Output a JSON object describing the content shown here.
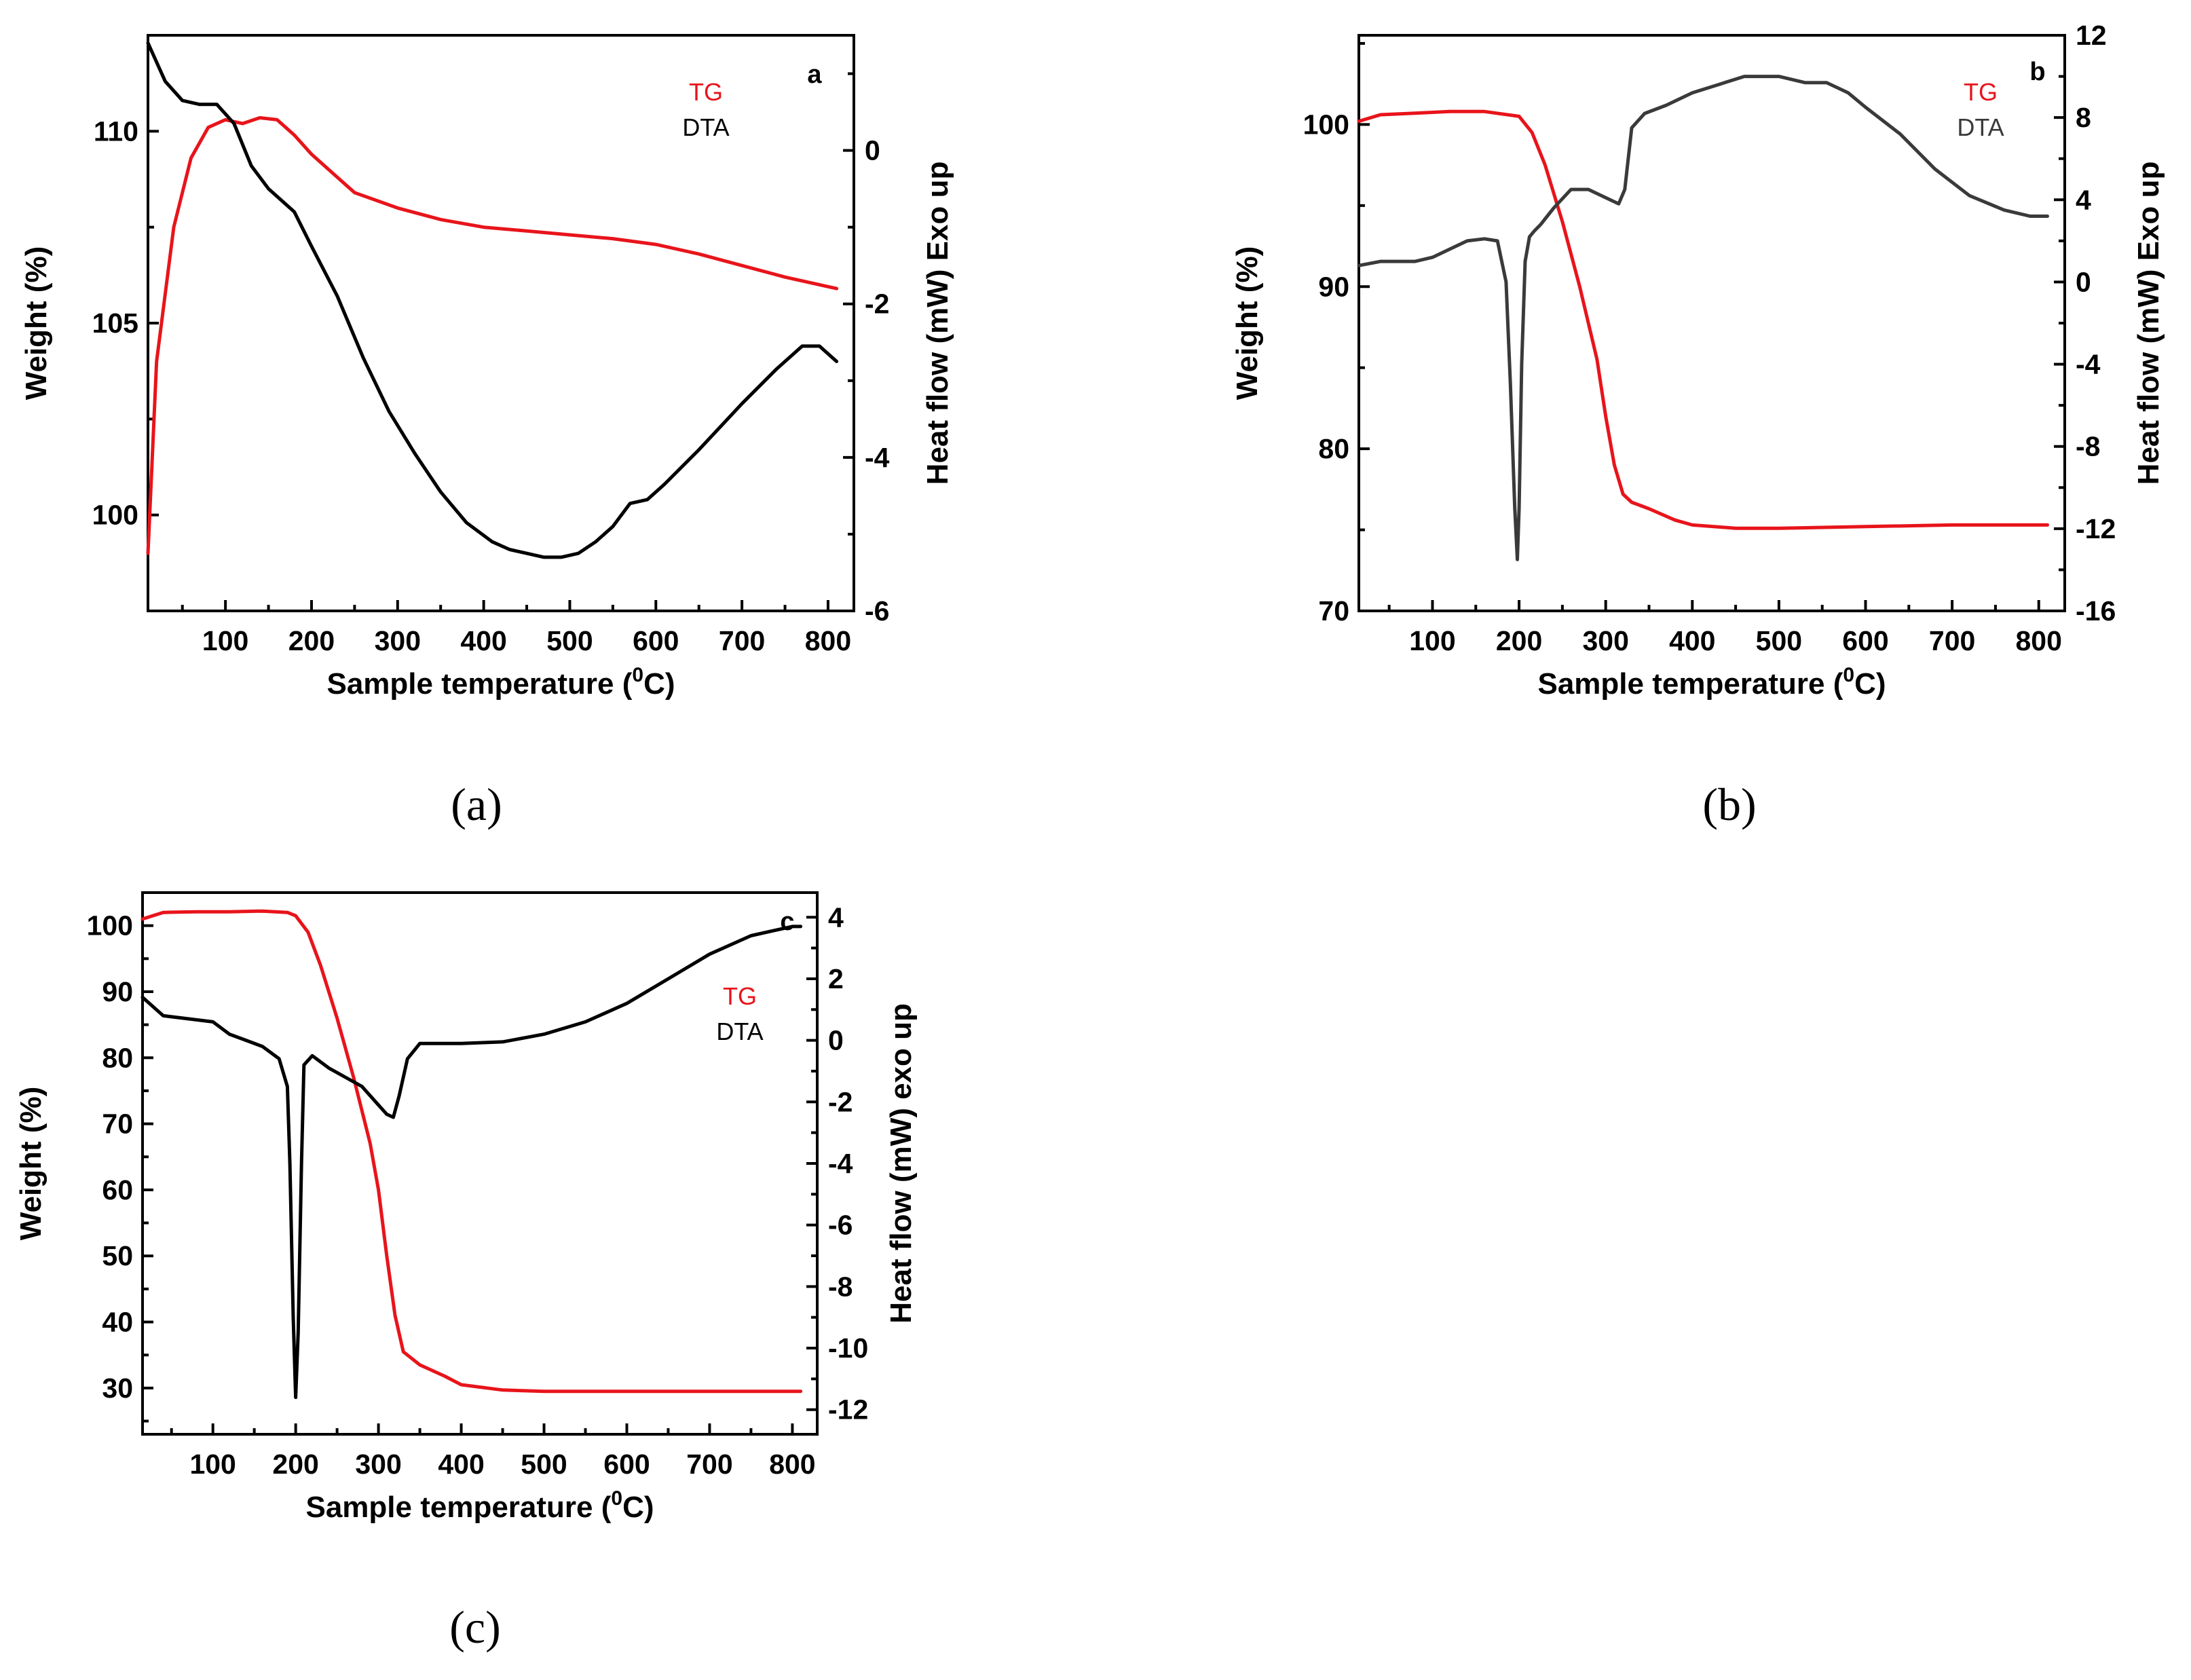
{
  "colors": {
    "tg": "#e8141b",
    "dta_a": "#000000",
    "dta_b": "#3a3a3a",
    "dta_c": "#000000",
    "axis": "#000000"
  },
  "chart_data": [
    {
      "type": "line",
      "panel_letter": "a",
      "caption": "(a)",
      "xlabel": "Sample temperature (",
      "xlabel_sup": "0",
      "xlabel_end": "C)",
      "ylabel_left": "Weight (%)",
      "ylabel_right": "Heat flow (mW) Exo up",
      "xlim": [
        10,
        830
      ],
      "ylim_left": [
        97.5,
        112.5
      ],
      "ylim_right": [
        -6,
        1.5
      ],
      "xticks": [
        100,
        200,
        300,
        400,
        500,
        600,
        700,
        800
      ],
      "yticks_left": [
        100,
        105,
        110
      ],
      "yticks_right": [
        -6,
        -4,
        -2,
        0
      ],
      "legend": [
        "TG",
        "DTA"
      ],
      "series": [
        {
          "name": "TG",
          "axis": "left",
          "color_key": "tg",
          "x": [
            10,
            20,
            40,
            60,
            80,
            100,
            120,
            140,
            160,
            180,
            200,
            250,
            300,
            350,
            400,
            450,
            500,
            550,
            600,
            650,
            700,
            750,
            800,
            810
          ],
          "y": [
            99.0,
            104.0,
            107.5,
            109.3,
            110.1,
            110.3,
            110.2,
            110.35,
            110.3,
            109.9,
            109.4,
            108.4,
            108.0,
            107.7,
            107.5,
            107.4,
            107.3,
            107.2,
            107.05,
            106.8,
            106.5,
            106.2,
            105.95,
            105.9
          ]
        },
        {
          "name": "DTA",
          "axis": "right",
          "color_key": "dta_a",
          "x": [
            10,
            30,
            50,
            70,
            90,
            110,
            130,
            150,
            180,
            200,
            230,
            260,
            290,
            320,
            350,
            380,
            410,
            430,
            450,
            470,
            490,
            510,
            530,
            550,
            570,
            590,
            610,
            650,
            700,
            740,
            770,
            790,
            810
          ],
          "y": [
            1.4,
            0.9,
            0.65,
            0.6,
            0.6,
            0.35,
            -0.2,
            -0.5,
            -0.8,
            -1.25,
            -1.9,
            -2.7,
            -3.4,
            -3.95,
            -4.45,
            -4.85,
            -5.1,
            -5.2,
            -5.25,
            -5.3,
            -5.3,
            -5.25,
            -5.1,
            -4.9,
            -4.6,
            -4.55,
            -4.35,
            -3.9,
            -3.3,
            -2.85,
            -2.55,
            -2.55,
            -2.75
          ]
        }
      ]
    },
    {
      "type": "line",
      "panel_letter": "b",
      "caption": "(b)",
      "xlabel": "Sample temperature (",
      "xlabel_sup": "0",
      "xlabel_end": "C)",
      "ylabel_left": "Weight (%)",
      "ylabel_right": "Heat flow (mW) Exo up",
      "xlim": [
        15,
        830
      ],
      "ylim_left": [
        70,
        105.5
      ],
      "ylim_right": [
        -16,
        12
      ],
      "xticks": [
        100,
        200,
        300,
        400,
        500,
        600,
        700,
        800
      ],
      "yticks_left": [
        70,
        80,
        90,
        100
      ],
      "yticks_right": [
        -16,
        -12,
        -8,
        -4,
        0,
        4,
        8,
        12
      ],
      "legend": [
        "TG",
        "DTA"
      ],
      "series": [
        {
          "name": "TG",
          "axis": "left",
          "color_key": "tg",
          "x": [
            15,
            40,
            80,
            120,
            160,
            200,
            215,
            230,
            250,
            270,
            290,
            300,
            310,
            320,
            330,
            350,
            380,
            400,
            450,
            500,
            600,
            700,
            800,
            810
          ],
          "y": [
            100.2,
            100.6,
            100.7,
            100.8,
            100.8,
            100.5,
            99.5,
            97.5,
            94.0,
            90.0,
            85.5,
            82.0,
            79.0,
            77.2,
            76.7,
            76.3,
            75.6,
            75.3,
            75.1,
            75.1,
            75.2,
            75.3,
            75.3,
            75.3
          ]
        },
        {
          "name": "DTA",
          "axis": "right",
          "color_key": "dta_b",
          "x": [
            15,
            40,
            80,
            100,
            120,
            140,
            160,
            175,
            185,
            190,
            195,
            198,
            200,
            203,
            207,
            212,
            218,
            225,
            240,
            260,
            280,
            300,
            315,
            322,
            330,
            345,
            370,
            400,
            430,
            460,
            500,
            530,
            555,
            580,
            600,
            640,
            680,
            720,
            760,
            790,
            810
          ],
          "y": [
            0.8,
            1.0,
            1.0,
            1.2,
            1.6,
            2.0,
            2.1,
            2.0,
            0.0,
            -5.0,
            -11.0,
            -13.5,
            -11.0,
            -4.0,
            1.0,
            2.2,
            2.5,
            2.8,
            3.6,
            4.5,
            4.5,
            4.1,
            3.8,
            4.5,
            7.5,
            8.2,
            8.6,
            9.2,
            9.6,
            10.0,
            10.0,
            9.7,
            9.7,
            9.2,
            8.5,
            7.2,
            5.5,
            4.2,
            3.5,
            3.2,
            3.2
          ]
        }
      ]
    },
    {
      "type": "line",
      "panel_letter": "c",
      "caption": "(c)",
      "xlabel": "Sample temperature (",
      "xlabel_sup": "0",
      "xlabel_end": "C)",
      "ylabel_left": "Weight (%)",
      "ylabel_right": "Heat flow (mW) exo up",
      "xlim": [
        15,
        830
      ],
      "ylim_left": [
        23,
        105
      ],
      "ylim_right": [
        -12.8,
        4.8
      ],
      "xticks": [
        100,
        200,
        300,
        400,
        500,
        600,
        700,
        800
      ],
      "yticks_left": [
        30,
        40,
        50,
        60,
        70,
        80,
        90,
        100
      ],
      "yticks_right": [
        -12,
        -10,
        -8,
        -6,
        -4,
        -2,
        0,
        2,
        4
      ],
      "legend": [
        "TG",
        "DTA"
      ],
      "series": [
        {
          "name": "TG",
          "axis": "left",
          "color_key": "tg",
          "x": [
            15,
            40,
            80,
            120,
            160,
            190,
            200,
            215,
            230,
            250,
            270,
            290,
            300,
            310,
            320,
            330,
            350,
            380,
            400,
            450,
            500,
            600,
            700,
            800,
            810
          ],
          "y": [
            101.0,
            102.0,
            102.1,
            102.1,
            102.2,
            102.0,
            101.5,
            99.0,
            94.0,
            86.0,
            77.0,
            67.0,
            60.0,
            50.0,
            41.0,
            35.5,
            33.5,
            31.8,
            30.5,
            29.7,
            29.5,
            29.5,
            29.5,
            29.5,
            29.5
          ]
        },
        {
          "name": "DTA",
          "axis": "right",
          "color_key": "dta_c",
          "x": [
            15,
            40,
            70,
            100,
            120,
            140,
            160,
            180,
            190,
            193,
            197,
            200,
            203,
            207,
            210,
            220,
            240,
            260,
            280,
            300,
            310,
            318,
            325,
            335,
            350,
            400,
            450,
            500,
            550,
            600,
            650,
            700,
            750,
            800,
            810
          ],
          "y": [
            1.4,
            0.8,
            0.7,
            0.6,
            0.2,
            0.0,
            -0.2,
            -0.6,
            -1.5,
            -4.0,
            -9.0,
            -11.6,
            -9.5,
            -4.0,
            -0.8,
            -0.5,
            -0.9,
            -1.2,
            -1.5,
            -2.1,
            -2.4,
            -2.5,
            -1.8,
            -0.6,
            -0.1,
            -0.1,
            -0.05,
            0.2,
            0.6,
            1.2,
            2.0,
            2.8,
            3.4,
            3.7,
            3.7
          ]
        }
      ]
    }
  ]
}
